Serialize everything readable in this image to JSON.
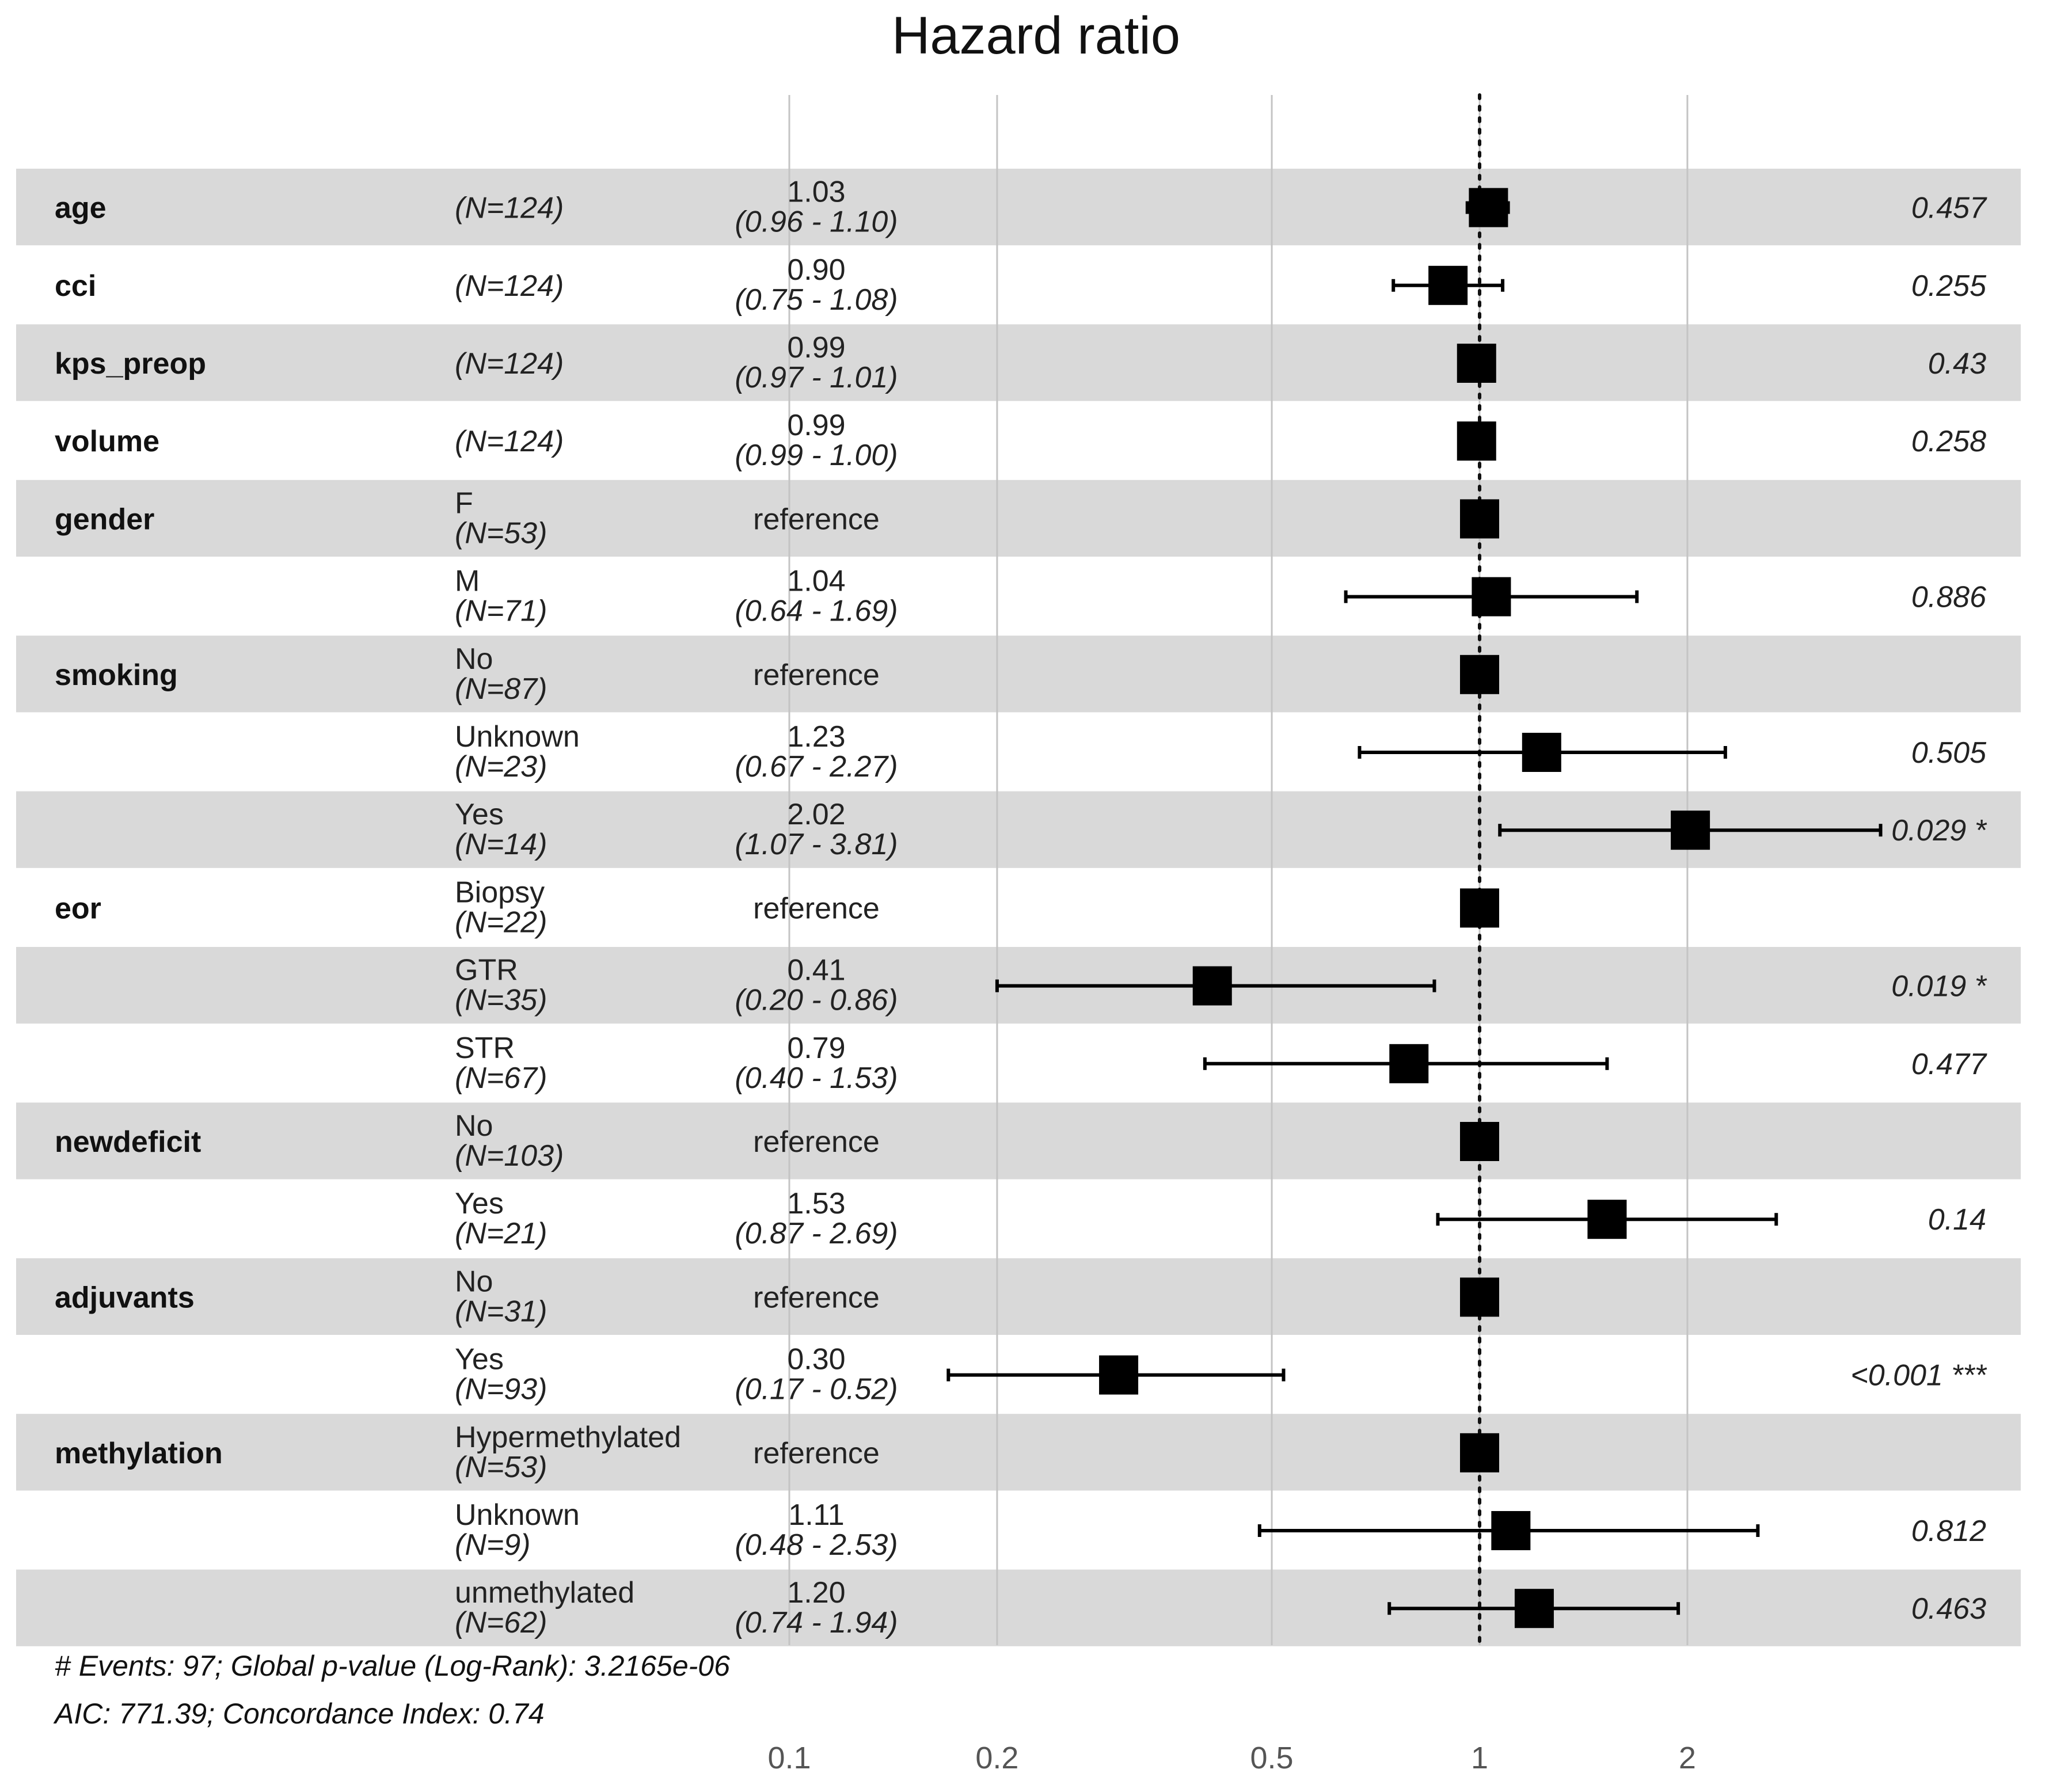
{
  "chart_data": {
    "type": "forest",
    "title": "Hazard ratio",
    "x_scale": "log",
    "x_ticks": [
      "0.1",
      "0.2",
      "0.5",
      "1",
      "2"
    ],
    "x_tick_values": [
      0.1,
      0.2,
      0.5,
      1,
      2
    ],
    "xlim": [
      0.1,
      4.5
    ],
    "reference_line": 1,
    "rows": [
      {
        "variable": "age",
        "level": "",
        "n": "(N=124)",
        "hr": 1.03,
        "lower": 0.96,
        "upper": 1.1,
        "hr_text": "1.03",
        "ci_text": "(0.96 - 1.10)",
        "p_text": "0.457",
        "stripe": true
      },
      {
        "variable": "cci",
        "level": "",
        "n": "(N=124)",
        "hr": 0.9,
        "lower": 0.75,
        "upper": 1.08,
        "hr_text": "0.90",
        "ci_text": "(0.75 - 1.08)",
        "p_text": "0.255",
        "stripe": false
      },
      {
        "variable": "kps_preop",
        "level": "",
        "n": "(N=124)",
        "hr": 0.99,
        "lower": 0.97,
        "upper": 1.01,
        "hr_text": "0.99",
        "ci_text": "(0.97 - 1.01)",
        "p_text": "0.43",
        "stripe": true
      },
      {
        "variable": "volume",
        "level": "",
        "n": "(N=124)",
        "hr": 0.99,
        "lower": 0.99,
        "upper": 1.0,
        "hr_text": "0.99",
        "ci_text": "(0.99 - 1.00)",
        "p_text": "0.258",
        "stripe": false
      },
      {
        "variable": "gender",
        "level": "F",
        "n": "(N=53)",
        "hr": 1,
        "lower": null,
        "upper": null,
        "hr_text": "reference",
        "ci_text": "",
        "p_text": "",
        "stripe": true
      },
      {
        "variable": "",
        "level": "M",
        "n": "(N=71)",
        "hr": 1.04,
        "lower": 0.64,
        "upper": 1.69,
        "hr_text": "1.04",
        "ci_text": "(0.64 - 1.69)",
        "p_text": "0.886",
        "stripe": false
      },
      {
        "variable": "smoking",
        "level": "No",
        "n": "(N=87)",
        "hr": 1,
        "lower": null,
        "upper": null,
        "hr_text": "reference",
        "ci_text": "",
        "p_text": "",
        "stripe": true
      },
      {
        "variable": "",
        "level": "Unknown",
        "n": "(N=23)",
        "hr": 1.23,
        "lower": 0.67,
        "upper": 2.27,
        "hr_text": "1.23",
        "ci_text": "(0.67 - 2.27)",
        "p_text": "0.505",
        "stripe": false
      },
      {
        "variable": "",
        "level": "Yes",
        "n": "(N=14)",
        "hr": 2.02,
        "lower": 1.07,
        "upper": 3.81,
        "hr_text": "2.02",
        "ci_text": "(1.07 - 3.81)",
        "p_text": "0.029 *",
        "stripe": true
      },
      {
        "variable": "eor",
        "level": "Biopsy",
        "n": "(N=22)",
        "hr": 1,
        "lower": null,
        "upper": null,
        "hr_text": "reference",
        "ci_text": "",
        "p_text": "",
        "stripe": false
      },
      {
        "variable": "",
        "level": "GTR",
        "n": "(N=35)",
        "hr": 0.41,
        "lower": 0.2,
        "upper": 0.86,
        "hr_text": "0.41",
        "ci_text": "(0.20 - 0.86)",
        "p_text": "0.019 *",
        "stripe": true
      },
      {
        "variable": "",
        "level": "STR",
        "n": "(N=67)",
        "hr": 0.79,
        "lower": 0.4,
        "upper": 1.53,
        "hr_text": "0.79",
        "ci_text": "(0.40 - 1.53)",
        "p_text": "0.477",
        "stripe": false
      },
      {
        "variable": "newdeficit",
        "level": "No",
        "n": "(N=103)",
        "hr": 1,
        "lower": null,
        "upper": null,
        "hr_text": "reference",
        "ci_text": "",
        "p_text": "",
        "stripe": true
      },
      {
        "variable": "",
        "level": "Yes",
        "n": "(N=21)",
        "hr": 1.53,
        "lower": 0.87,
        "upper": 2.69,
        "hr_text": "1.53",
        "ci_text": "(0.87 - 2.69)",
        "p_text": "0.14",
        "stripe": false
      },
      {
        "variable": "adjuvants",
        "level": "No",
        "n": "(N=31)",
        "hr": 1,
        "lower": null,
        "upper": null,
        "hr_text": "reference",
        "ci_text": "",
        "p_text": "",
        "stripe": true
      },
      {
        "variable": "",
        "level": "Yes",
        "n": "(N=93)",
        "hr": 0.3,
        "lower": 0.17,
        "upper": 0.52,
        "hr_text": "0.30",
        "ci_text": "(0.17 - 0.52)",
        "p_text": "<0.001 ***",
        "stripe": false
      },
      {
        "variable": "methylation",
        "level": "Hypermethylated",
        "n": "(N=53)",
        "hr": 1,
        "lower": null,
        "upper": null,
        "hr_text": "reference",
        "ci_text": "",
        "p_text": "",
        "stripe": true
      },
      {
        "variable": "",
        "level": "Unknown",
        "n": "(N=9)",
        "hr": 1.11,
        "lower": 0.48,
        "upper": 2.53,
        "hr_text": "1.11",
        "ci_text": "(0.48 - 2.53)",
        "p_text": "0.812",
        "stripe": false
      },
      {
        "variable": "",
        "level": "unmethylated",
        "n": "(N=62)",
        "hr": 1.2,
        "lower": 0.74,
        "upper": 1.94,
        "hr_text": "1.20",
        "ci_text": "(0.74 - 1.94)",
        "p_text": "0.463",
        "stripe": true
      }
    ],
    "footer": {
      "line1": "# Events: 97; Global p-value (Log-Rank): 3.2165e-06",
      "line2": "AIC: 771.39; Concordance Index: 0.74"
    }
  }
}
